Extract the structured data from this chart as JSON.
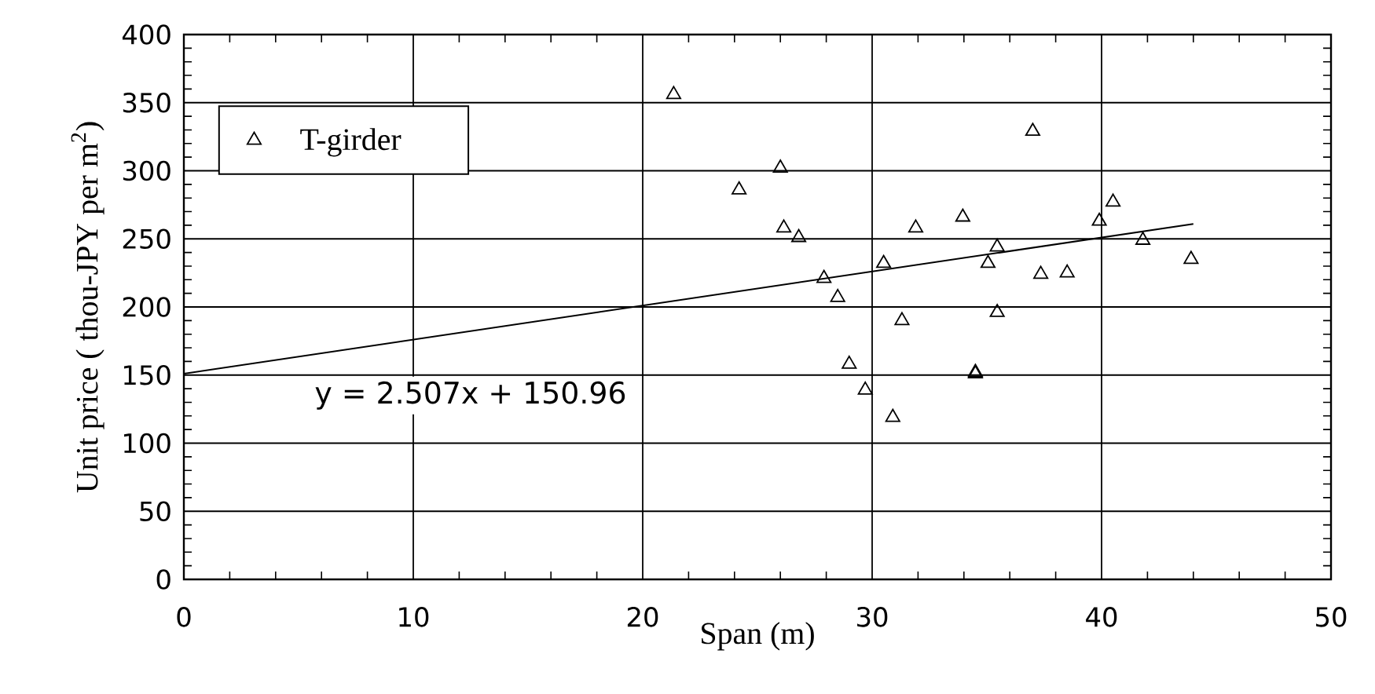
{
  "chart_data": {
    "type": "scatter",
    "xlabel": "Span (m)",
    "ylabel": "Unit price ( thou-JPY per m$^{2}$)",
    "xlim": [
      0,
      50
    ],
    "xticks": [
      0,
      10,
      20,
      30,
      40,
      50
    ],
    "ylim": [
      0,
      400
    ],
    "yticks": [
      0,
      50,
      100,
      150,
      200,
      250,
      300,
      350,
      400
    ],
    "grid": true,
    "legend": "top left",
    "annotations": [
      "y = 2.507x + 150.96"
    ],
    "series": [
      {
        "name": "T-girder",
        "marker": "triangle",
        "color": "#000000",
        "x": [
          21.35,
          24.2,
          26.0,
          26.15,
          26.8,
          27.9,
          28.5,
          29.0,
          29.7,
          30.5,
          30.9,
          31.3,
          31.9,
          33.95,
          34.5,
          34.5,
          35.05,
          35.45,
          35.45,
          37.0,
          37.35,
          38.5,
          39.9,
          40.5,
          41.8,
          43.9
        ],
        "values": [
          356,
          286,
          302,
          258,
          251,
          221,
          207,
          158,
          139,
          232,
          119,
          190,
          258,
          266,
          151,
          152,
          232,
          244,
          196,
          329,
          224,
          225,
          263,
          277,
          249,
          235
        ]
      },
      {
        "type": "line",
        "marker": "none",
        "color": "#000000",
        "x": [
          0,
          44
        ],
        "values": [
          151,
          261
        ]
      }
    ]
  }
}
